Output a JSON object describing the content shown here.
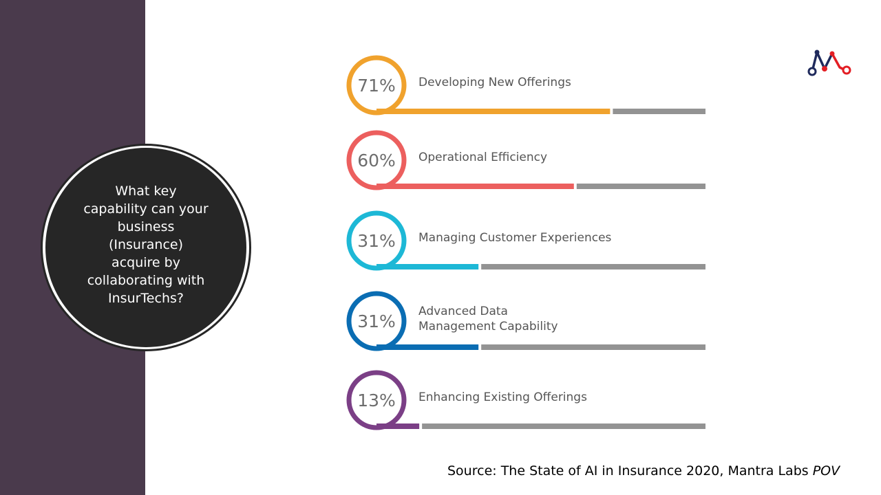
{
  "question": {
    "lines": [
      "What key",
      "capability can your",
      "business",
      "(Insurance)",
      "acquire by",
      "collaborating with",
      "InsurTechs?"
    ]
  },
  "logo": {
    "icon": "mantra-labs-logo-icon",
    "colors": [
      "#1f2a5c",
      "#e31e24"
    ]
  },
  "chart_data": {
    "type": "bar",
    "categories": [
      "Developing New Offerings",
      "Operational Efficiency",
      "Managing Customer Experiences",
      "Advanced Data Management Capability",
      "Enhancing Existing Offerings"
    ],
    "label_lines": [
      [
        "Developing New Offerings"
      ],
      [
        "Operational Efficiency"
      ],
      [
        "Managing Customer Experiences"
      ],
      [
        "Advanced Data",
        "Management Capability"
      ],
      [
        "Enhancing Existing Offerings"
      ]
    ],
    "values": [
      71,
      60,
      31,
      31,
      13
    ],
    "value_labels": [
      "71%",
      "60%",
      "31%",
      "31%",
      "13%"
    ],
    "value_suffix": "%",
    "colors": [
      "#f0a22d",
      "#ec5f5e",
      "#1db8d6",
      "#0a6db3",
      "#7b3f86"
    ],
    "track_color": "#939393",
    "ylim": [
      0,
      100
    ],
    "title": "",
    "xlabel": "",
    "ylabel": ""
  },
  "source": {
    "prefix": "Source: The State of AI in Insurance 2020, Mantra Labs ",
    "suffix_italic": "POV"
  }
}
